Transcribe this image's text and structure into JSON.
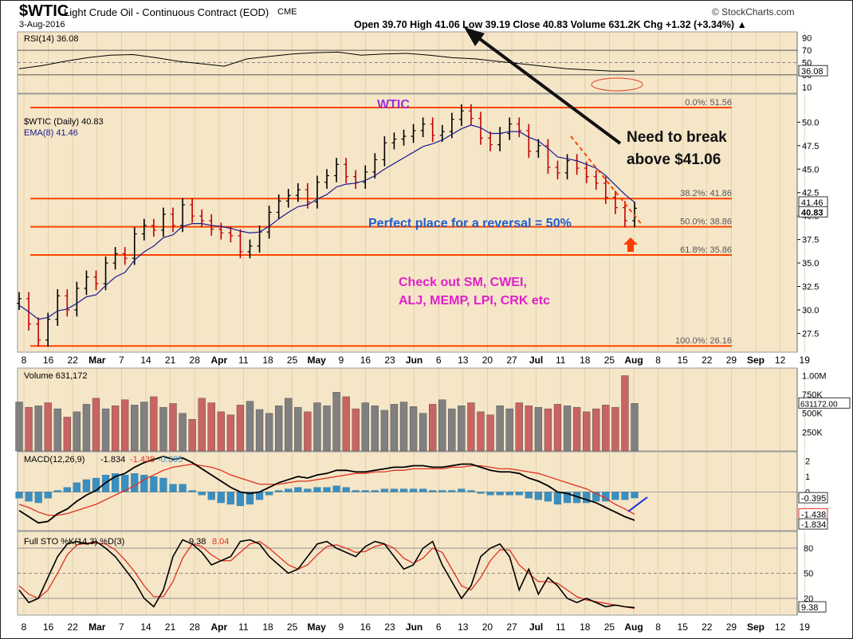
{
  "header": {
    "symbol": "$WTIC",
    "name": "Light Crude Oil - Continuous Contract (EOD)",
    "exchange": "CME",
    "date": "3-Aug-2016",
    "source": "© StockCharts.com",
    "quote_line": "Open 39.70  High 41.06  Low 39.19  Close 40.83  Volume 631.2K  Chg +1.32 (+3.34%) ▲"
  },
  "annotations": {
    "title": "WTIC",
    "need_break_line1": "Need to break",
    "need_break_line2": "above $41.06",
    "perfect_place": "Perfect place for a reversal =  50%",
    "check_line1": "Check out SM, CWEI,",
    "check_line2": "ALJ, MEMP, LPI, CRK etc"
  },
  "colors": {
    "panel_bg": "#f5e6c8",
    "price_bar": "#000000",
    "ema": "#1a1a8c",
    "fib_line": "#ff4500",
    "volume_up": "#808080",
    "volume_down": "#c86464",
    "macd_line": "#000000",
    "signal_line": "#e03020",
    "histogram": "#3a8fc0",
    "annotation_blue": "#1f5ccc",
    "annotation_purple": "#9b30d0",
    "annotation_magenta": "#e020c8",
    "arrow_dark": "#111111"
  },
  "chart_data": {
    "type": "line",
    "x_axis": {
      "ticks": [
        "8",
        "16",
        "22",
        "Mar",
        "7",
        "14",
        "21",
        "28",
        "Apr",
        "11",
        "18",
        "25",
        "May",
        "9",
        "16",
        "23",
        "Jun",
        "6",
        "13",
        "20",
        "27",
        "Jul",
        "11",
        "18",
        "25",
        "Aug",
        "8",
        "15",
        "22",
        "29",
        "Sep",
        "12",
        "19"
      ],
      "bold_ticks": [
        "Mar",
        "Apr",
        "May",
        "Jun",
        "Jul",
        "Aug",
        "Sep"
      ]
    },
    "rsi_panel": {
      "legend": "RSI(14) 36.08",
      "ylim": [
        0,
        100
      ],
      "y_ticks": [
        "90",
        "70",
        "50",
        "30",
        "10"
      ],
      "last_label": "36.08",
      "values": [
        40,
        45,
        52,
        58,
        62,
        63,
        58,
        52,
        48,
        44,
        56,
        60,
        64,
        66,
        67,
        62,
        64,
        65,
        62,
        58,
        56,
        52,
        48,
        44,
        40,
        38,
        36,
        36
      ]
    },
    "price_panel": {
      "legend_symbol": "$WTIC (Daily) 40.83",
      "legend_ema": "EMA(8) 41.46",
      "ylim": [
        25.5,
        53
      ],
      "y_ticks": [
        "50.0",
        "47.5",
        "45.0",
        "42.5",
        "40.0",
        "37.5",
        "35.0",
        "32.5",
        "30.0",
        "27.5"
      ],
      "y_tick_values": [
        50.0,
        47.5,
        45.0,
        42.5,
        40.0,
        37.5,
        35.0,
        32.5,
        30.0,
        27.5
      ],
      "last_price_labels": [
        "41.46",
        "40.83"
      ],
      "close": [
        31.2,
        28.5,
        26.8,
        29.0,
        31.5,
        30.0,
        32.3,
        33.5,
        32.8,
        35.0,
        36.0,
        35.5,
        38.1,
        39.0,
        38.5,
        40.2,
        39.0,
        41.2,
        40.0,
        39.5,
        38.6,
        38.2,
        37.9,
        36.2,
        36.8,
        38.3,
        40.4,
        41.6,
        42.2,
        42.8,
        41.5,
        43.6,
        44.3,
        45.5,
        44.2,
        43.6,
        44.7,
        46.0,
        47.8,
        48.2,
        48.5,
        49.1,
        49.8,
        48.6,
        49.0,
        50.3,
        51.2,
        50.4,
        48.3,
        47.6,
        48.8,
        49.8,
        49.1,
        46.9,
        47.5,
        45.2,
        44.6,
        45.9,
        45.1,
        44.2,
        43.5,
        42.0,
        40.9,
        39.5,
        40.83
      ],
      "ema8": [
        30.5,
        29.8,
        29.0,
        29.2,
        29.9,
        30.1,
        30.7,
        31.4,
        31.6,
        32.6,
        33.5,
        34.0,
        35.3,
        36.2,
        36.8,
        37.7,
        38.0,
        38.9,
        39.2,
        39.2,
        39.0,
        38.9,
        38.7,
        38.4,
        38.2,
        38.3,
        38.9,
        39.7,
        40.4,
        41.0,
        41.2,
        41.8,
        42.3,
        43.1,
        43.4,
        43.5,
        43.8,
        44.3,
        45.0,
        45.6,
        46.2,
        46.8,
        47.4,
        47.7,
        48.1,
        48.7,
        49.3,
        49.7,
        49.4,
        48.8,
        48.8,
        49.0,
        49.0,
        48.4,
        48.0,
        47.2,
        46.3,
        46.1,
        45.9,
        45.5,
        45.1,
        44.3,
        43.3,
        42.3,
        41.46
      ],
      "fibonacci": [
        {
          "label": "0.0%: 51.56",
          "value": 51.56
        },
        {
          "label": "38.2%: 41.86",
          "value": 41.86
        },
        {
          "label": "50.0%: 38.86",
          "value": 38.86
        },
        {
          "label": "61.8%: 35.86",
          "value": 35.86
        },
        {
          "label": "100.0%: 26.16",
          "value": 26.16
        }
      ]
    },
    "volume_panel": {
      "legend": "Volume 631,172",
      "ylim": [
        0,
        1100000
      ],
      "y_ticks": [
        "1.00M",
        "750K",
        "500K",
        "250K"
      ],
      "y_tick_values": [
        1000000,
        750000,
        500000,
        250000
      ],
      "last_label": "631172.00",
      "values": [
        650000,
        580000,
        600000,
        640000,
        560000,
        450000,
        520000,
        620000,
        700000,
        560000,
        600000,
        680000,
        610000,
        650000,
        720000,
        580000,
        630000,
        500000,
        420000,
        700000,
        640000,
        520000,
        480000,
        610000,
        660000,
        550000,
        500000,
        600000,
        700000,
        580000,
        520000,
        640000,
        600000,
        780000,
        720000,
        560000,
        640000,
        600000,
        540000,
        620000,
        650000,
        590000,
        500000,
        620000,
        680000,
        560000,
        600000,
        640000,
        520000,
        480000,
        600000,
        560000,
        640000,
        600000,
        580000,
        560000,
        620000,
        600000,
        580000,
        520000,
        560000,
        610000,
        580000,
        1000000,
        631172
      ],
      "up": [
        true,
        false,
        true,
        false,
        true,
        false,
        true,
        true,
        false,
        true,
        false,
        false,
        true,
        true,
        false,
        true,
        false,
        true,
        false,
        false,
        false,
        false,
        false,
        false,
        true,
        true,
        true,
        true,
        true,
        true,
        false,
        true,
        true,
        true,
        false,
        false,
        true,
        true,
        true,
        true,
        true,
        true,
        true,
        false,
        true,
        true,
        true,
        false,
        false,
        false,
        true,
        true,
        false,
        false,
        true,
        false,
        false,
        true,
        false,
        false,
        false,
        false,
        false,
        false,
        true
      ]
    },
    "macd_panel": {
      "legend_prefix": "MACD(12,26,9)",
      "legend_macd": "-1.834",
      "legend_signal": "-1.438",
      "legend_hist": "-0.395",
      "ylim": [
        -2.5,
        2.6
      ],
      "y_ticks": [
        "2",
        "1",
        "0"
      ],
      "y_tick_values": [
        2,
        1,
        0
      ],
      "last_labels": [
        "-0.395",
        "-1.438",
        "-1.834"
      ],
      "macd": [
        -1.2,
        -1.6,
        -2.0,
        -1.9,
        -1.4,
        -1.1,
        -0.6,
        -0.2,
        0.1,
        0.6,
        1.0,
        1.2,
        1.6,
        1.9,
        2.1,
        2.3,
        2.1,
        2.2,
        1.9,
        1.5,
        1.1,
        0.7,
        0.3,
        0.0,
        -0.1,
        0.0,
        0.3,
        0.6,
        0.8,
        1.0,
        0.9,
        1.1,
        1.2,
        1.4,
        1.4,
        1.3,
        1.3,
        1.4,
        1.5,
        1.6,
        1.6,
        1.7,
        1.7,
        1.6,
        1.6,
        1.7,
        1.8,
        1.8,
        1.6,
        1.4,
        1.3,
        1.3,
        1.2,
        0.9,
        0.7,
        0.4,
        0.0,
        -0.1,
        -0.3,
        -0.5,
        -0.7,
        -1.0,
        -1.3,
        -1.6,
        -1.83
      ],
      "signal": [
        -0.8,
        -1.0,
        -1.3,
        -1.5,
        -1.5,
        -1.4,
        -1.2,
        -1.0,
        -0.8,
        -0.5,
        -0.2,
        0.1,
        0.4,
        0.8,
        1.1,
        1.4,
        1.6,
        1.7,
        1.8,
        1.7,
        1.6,
        1.4,
        1.1,
        0.9,
        0.7,
        0.5,
        0.5,
        0.5,
        0.6,
        0.7,
        0.7,
        0.8,
        0.9,
        1.0,
        1.1,
        1.2,
        1.2,
        1.3,
        1.3,
        1.4,
        1.4,
        1.5,
        1.5,
        1.5,
        1.5,
        1.6,
        1.6,
        1.7,
        1.7,
        1.6,
        1.5,
        1.5,
        1.4,
        1.3,
        1.2,
        1.0,
        0.8,
        0.6,
        0.4,
        0.2,
        -0.1,
        -0.4,
        -0.8,
        -1.1,
        -1.44
      ]
    },
    "sto_panel": {
      "legend_prefix": "Full STO %K(14,3) %D(3)",
      "legend_k": "9.38",
      "legend_d": "8.04",
      "ylim": [
        0,
        100
      ],
      "y_ticks": [
        "80",
        "50",
        "20"
      ],
      "y_tick_values": [
        80,
        50,
        20
      ],
      "last_label": "9.38",
      "k": [
        30,
        15,
        20,
        45,
        70,
        85,
        88,
        85,
        88,
        80,
        70,
        55,
        40,
        20,
        10,
        30,
        70,
        90,
        85,
        75,
        60,
        65,
        70,
        88,
        90,
        85,
        70,
        60,
        50,
        55,
        70,
        85,
        88,
        80,
        75,
        70,
        82,
        88,
        85,
        70,
        55,
        60,
        80,
        88,
        60,
        40,
        20,
        35,
        70,
        80,
        85,
        70,
        30,
        55,
        25,
        45,
        35,
        20,
        15,
        20,
        15,
        10,
        12,
        10,
        9
      ],
      "d": [
        35,
        25,
        20,
        30,
        50,
        72,
        84,
        86,
        86,
        85,
        78,
        66,
        52,
        35,
        22,
        22,
        40,
        68,
        85,
        82,
        72,
        65,
        65,
        75,
        85,
        88,
        80,
        70,
        60,
        55,
        60,
        72,
        82,
        84,
        80,
        75,
        76,
        82,
        85,
        80,
        68,
        62,
        68,
        80,
        75,
        55,
        35,
        30,
        45,
        65,
        78,
        78,
        60,
        50,
        40,
        40,
        38,
        30,
        22,
        18,
        16,
        14,
        12,
        10,
        8
      ]
    }
  }
}
